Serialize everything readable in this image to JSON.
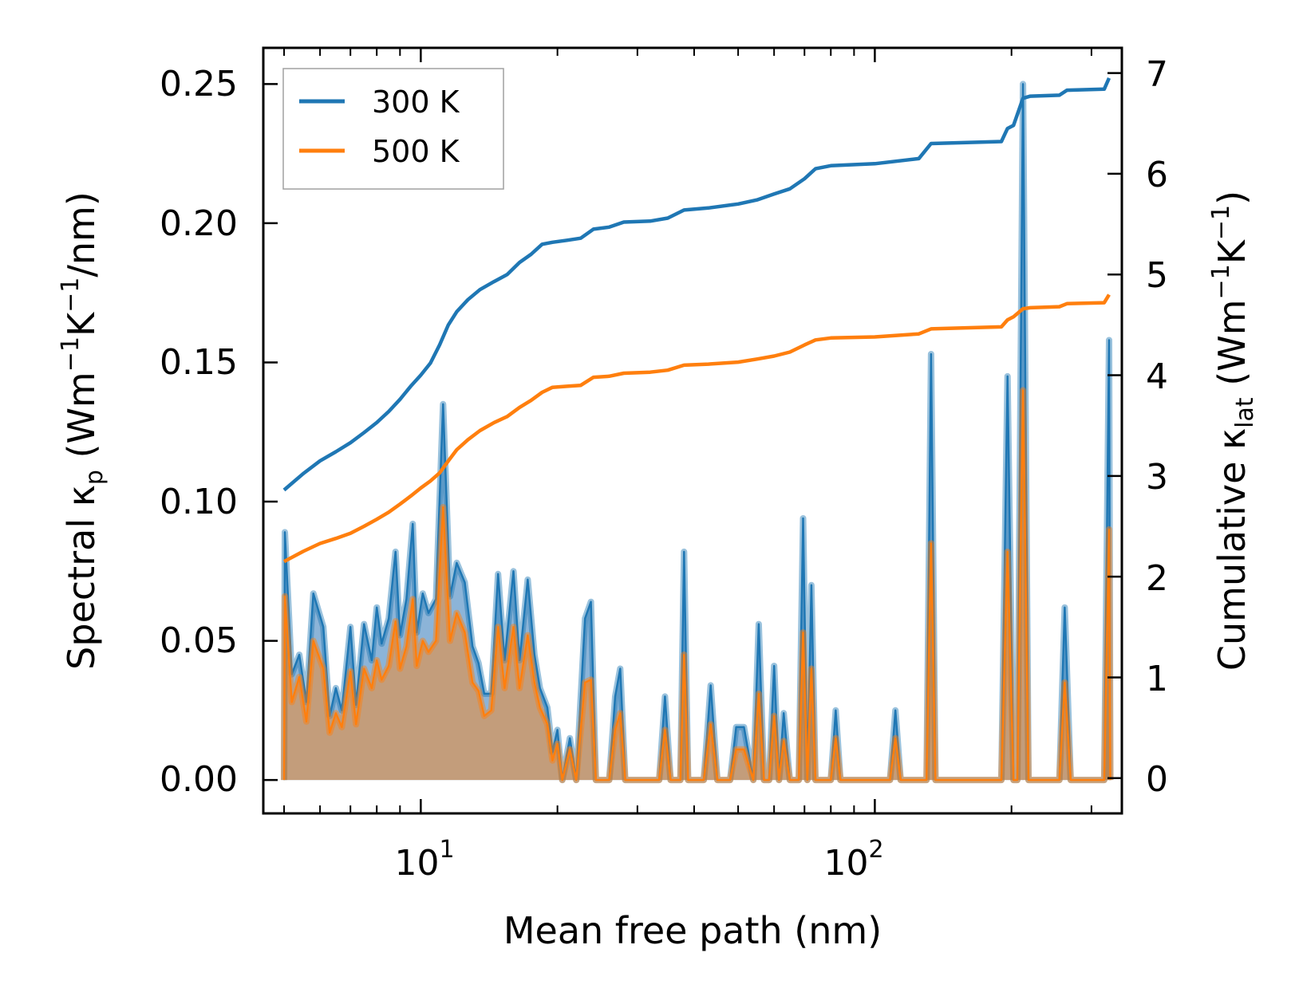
{
  "chart_data": {
    "type": "line",
    "xlabel": "Mean free path (nm)",
    "ylabel": {
      "prefix": "Spectral κ",
      "sub": "p",
      "open": " (Wm",
      "sup1": "−1",
      "mid": "K",
      "sup2": "−1",
      "close": "/nm)"
    },
    "y2label": {
      "prefix": "Cumulative κ",
      "sub": "lat",
      "open": " (Wm",
      "sup1": "−1",
      "mid": "K",
      "sup2": "−1",
      "close": ")"
    },
    "xscale": "log",
    "xlim": [
      4.5,
      350
    ],
    "ylim": [
      -0.012,
      0.263
    ],
    "y2lim": [
      -0.35,
      7.25
    ],
    "x_tick_labels": [
      {
        "value": 10,
        "base": "10",
        "exp": "1"
      },
      {
        "value": 100,
        "base": "10",
        "exp": "2"
      }
    ],
    "y_ticks": [
      0.0,
      0.05,
      0.1,
      0.15,
      0.2,
      0.25
    ],
    "y_tick_labels": [
      "0.00",
      "0.05",
      "0.10",
      "0.15",
      "0.20",
      "0.25"
    ],
    "y2_ticks": [
      0,
      1,
      2,
      3,
      4,
      5,
      6,
      7
    ],
    "y2_tick_labels": [
      "0",
      "1",
      "2",
      "3",
      "4",
      "5",
      "6",
      "7"
    ],
    "legend": {
      "position": "upper-left",
      "entries": [
        "300 K",
        "500 K"
      ]
    },
    "colors": {
      "300 K": "#1f77b4",
      "500 K": "#ff7f0e",
      "fill_300": "#8cb4d8",
      "fill_500": "#c89b73"
    },
    "spectral_series": [
      {
        "name": "300 K",
        "points": [
          [
            5.0,
            0.0
          ],
          [
            5.02,
            0.089
          ],
          [
            5.2,
            0.038
          ],
          [
            5.4,
            0.045
          ],
          [
            5.6,
            0.028
          ],
          [
            5.8,
            0.067
          ],
          [
            6.1,
            0.055
          ],
          [
            6.3,
            0.023
          ],
          [
            6.5,
            0.033
          ],
          [
            6.7,
            0.025
          ],
          [
            7.0,
            0.055
          ],
          [
            7.2,
            0.027
          ],
          [
            7.5,
            0.056
          ],
          [
            7.8,
            0.043
          ],
          [
            8.0,
            0.062
          ],
          [
            8.2,
            0.049
          ],
          [
            8.5,
            0.058
          ],
          [
            8.8,
            0.082
          ],
          [
            9.0,
            0.052
          ],
          [
            9.3,
            0.065
          ],
          [
            9.6,
            0.092
          ],
          [
            9.8,
            0.053
          ],
          [
            10.1,
            0.067
          ],
          [
            10.4,
            0.06
          ],
          [
            10.8,
            0.065
          ],
          [
            11.2,
            0.135
          ],
          [
            11.6,
            0.066
          ],
          [
            12.0,
            0.078
          ],
          [
            12.5,
            0.071
          ],
          [
            13.0,
            0.048
          ],
          [
            13.4,
            0.042
          ],
          [
            13.8,
            0.031
          ],
          [
            14.3,
            0.031
          ],
          [
            14.8,
            0.074
          ],
          [
            15.3,
            0.043
          ],
          [
            16.0,
            0.075
          ],
          [
            16.5,
            0.043
          ],
          [
            17.2,
            0.072
          ],
          [
            17.8,
            0.045
          ],
          [
            18.3,
            0.033
          ],
          [
            19.0,
            0.026
          ],
          [
            19.5,
            0.01
          ],
          [
            20.0,
            0.018
          ],
          [
            20.5,
            0.0
          ],
          [
            21.3,
            0.015
          ],
          [
            22.0,
            0.0
          ],
          [
            23.0,
            0.058
          ],
          [
            23.7,
            0.064
          ],
          [
            24.3,
            0.0
          ],
          [
            26.0,
            0.0
          ],
          [
            26.8,
            0.03
          ],
          [
            27.5,
            0.04
          ],
          [
            28.2,
            0.0
          ],
          [
            33.5,
            0.0
          ],
          [
            34.5,
            0.03
          ],
          [
            35.5,
            0.0
          ],
          [
            37.3,
            0.0
          ],
          [
            38.0,
            0.082
          ],
          [
            38.8,
            0.0
          ],
          [
            42.0,
            0.0
          ],
          [
            43.5,
            0.034
          ],
          [
            45.0,
            0.0
          ],
          [
            48.0,
            0.0
          ],
          [
            49.5,
            0.019
          ],
          [
            51.5,
            0.019
          ],
          [
            54.0,
            0.0
          ],
          [
            55.5,
            0.056
          ],
          [
            57.0,
            0.0
          ],
          [
            58.5,
            0.0
          ],
          [
            60.0,
            0.041
          ],
          [
            61.5,
            0.0
          ],
          [
            63.0,
            0.024
          ],
          [
            65.0,
            0.0
          ],
          [
            68.0,
            0.0
          ],
          [
            69.5,
            0.094
          ],
          [
            71.0,
            0.0
          ],
          [
            72.5,
            0.07
          ],
          [
            74.0,
            0.0
          ],
          [
            80.0,
            0.0
          ],
          [
            82.0,
            0.025
          ],
          [
            84.0,
            0.0
          ],
          [
            108.0,
            0.0
          ],
          [
            111.0,
            0.025
          ],
          [
            114.0,
            0.0
          ],
          [
            130.0,
            0.0
          ],
          [
            133.0,
            0.153
          ],
          [
            136.0,
            0.0
          ],
          [
            190.0,
            0.0
          ],
          [
            196.0,
            0.145
          ],
          [
            202.0,
            0.0
          ],
          [
            206.0,
            0.0
          ],
          [
            212.0,
            0.25
          ],
          [
            218.0,
            0.0
          ],
          [
            255.0,
            0.0
          ],
          [
            262.0,
            0.062
          ],
          [
            270.0,
            0.0
          ],
          [
            320.0,
            0.0
          ],
          [
            328.0,
            0.158
          ],
          [
            330.0,
            0.0
          ]
        ]
      },
      {
        "name": "500 K",
        "points": [
          [
            5.0,
            0.0
          ],
          [
            5.02,
            0.066
          ],
          [
            5.2,
            0.028
          ],
          [
            5.4,
            0.037
          ],
          [
            5.6,
            0.021
          ],
          [
            5.8,
            0.05
          ],
          [
            6.1,
            0.04
          ],
          [
            6.3,
            0.017
          ],
          [
            6.5,
            0.024
          ],
          [
            6.7,
            0.019
          ],
          [
            7.0,
            0.039
          ],
          [
            7.2,
            0.02
          ],
          [
            7.5,
            0.04
          ],
          [
            7.8,
            0.033
          ],
          [
            8.0,
            0.043
          ],
          [
            8.2,
            0.036
          ],
          [
            8.5,
            0.041
          ],
          [
            8.8,
            0.057
          ],
          [
            9.0,
            0.04
          ],
          [
            9.3,
            0.048
          ],
          [
            9.6,
            0.065
          ],
          [
            9.8,
            0.041
          ],
          [
            10.1,
            0.05
          ],
          [
            10.4,
            0.046
          ],
          [
            10.8,
            0.05
          ],
          [
            11.2,
            0.098
          ],
          [
            11.6,
            0.05
          ],
          [
            12.0,
            0.06
          ],
          [
            12.5,
            0.053
          ],
          [
            13.0,
            0.035
          ],
          [
            13.4,
            0.032
          ],
          [
            13.8,
            0.023
          ],
          [
            14.3,
            0.025
          ],
          [
            14.8,
            0.055
          ],
          [
            15.3,
            0.033
          ],
          [
            16.0,
            0.055
          ],
          [
            16.5,
            0.033
          ],
          [
            17.2,
            0.052
          ],
          [
            17.8,
            0.035
          ],
          [
            18.3,
            0.026
          ],
          [
            19.0,
            0.02
          ],
          [
            19.5,
            0.007
          ],
          [
            20.0,
            0.013
          ],
          [
            20.5,
            0.0
          ],
          [
            21.3,
            0.011
          ],
          [
            22.0,
            0.0
          ],
          [
            23.0,
            0.035
          ],
          [
            23.7,
            0.036
          ],
          [
            24.3,
            0.0
          ],
          [
            26.0,
            0.0
          ],
          [
            26.8,
            0.018
          ],
          [
            27.5,
            0.024
          ],
          [
            28.2,
            0.0
          ],
          [
            33.5,
            0.0
          ],
          [
            34.5,
            0.018
          ],
          [
            35.5,
            0.0
          ],
          [
            37.3,
            0.0
          ],
          [
            38.0,
            0.045
          ],
          [
            38.8,
            0.0
          ],
          [
            42.0,
            0.0
          ],
          [
            43.5,
            0.02
          ],
          [
            45.0,
            0.0
          ],
          [
            48.0,
            0.0
          ],
          [
            49.5,
            0.011
          ],
          [
            51.5,
            0.011
          ],
          [
            54.0,
            0.0
          ],
          [
            55.5,
            0.031
          ],
          [
            57.0,
            0.0
          ],
          [
            58.5,
            0.0
          ],
          [
            60.0,
            0.023
          ],
          [
            61.5,
            0.0
          ],
          [
            63.0,
            0.014
          ],
          [
            65.0,
            0.0
          ],
          [
            68.0,
            0.0
          ],
          [
            69.5,
            0.053
          ],
          [
            71.0,
            0.0
          ],
          [
            72.5,
            0.04
          ],
          [
            74.0,
            0.0
          ],
          [
            80.0,
            0.0
          ],
          [
            82.0,
            0.015
          ],
          [
            84.0,
            0.0
          ],
          [
            108.0,
            0.0
          ],
          [
            111.0,
            0.015
          ],
          [
            114.0,
            0.0
          ],
          [
            130.0,
            0.0
          ],
          [
            133.0,
            0.085
          ],
          [
            136.0,
            0.0
          ],
          [
            190.0,
            0.0
          ],
          [
            196.0,
            0.082
          ],
          [
            202.0,
            0.0
          ],
          [
            206.0,
            0.0
          ],
          [
            212.0,
            0.14
          ],
          [
            218.0,
            0.0
          ],
          [
            255.0,
            0.0
          ],
          [
            262.0,
            0.035
          ],
          [
            270.0,
            0.0
          ],
          [
            320.0,
            0.0
          ],
          [
            328.0,
            0.09
          ],
          [
            330.0,
            0.0
          ]
        ]
      }
    ],
    "cumulative_series": [
      {
        "name": "300 K",
        "points": [
          [
            5.0,
            2.86
          ],
          [
            5.5,
            3.02
          ],
          [
            6.0,
            3.15
          ],
          [
            6.5,
            3.24
          ],
          [
            7.0,
            3.33
          ],
          [
            7.5,
            3.43
          ],
          [
            8.0,
            3.53
          ],
          [
            8.5,
            3.64
          ],
          [
            9.0,
            3.76
          ],
          [
            9.5,
            3.89
          ],
          [
            10.0,
            4.0
          ],
          [
            10.5,
            4.12
          ],
          [
            11.0,
            4.3
          ],
          [
            11.5,
            4.5
          ],
          [
            12.0,
            4.63
          ],
          [
            12.7,
            4.75
          ],
          [
            13.5,
            4.85
          ],
          [
            14.5,
            4.93
          ],
          [
            15.5,
            5.0
          ],
          [
            16.5,
            5.12
          ],
          [
            17.5,
            5.2
          ],
          [
            18.5,
            5.3
          ],
          [
            19.5,
            5.32
          ],
          [
            21.0,
            5.34
          ],
          [
            22.5,
            5.36
          ],
          [
            24.0,
            5.45
          ],
          [
            26.0,
            5.47
          ],
          [
            28.0,
            5.52
          ],
          [
            32.0,
            5.53
          ],
          [
            35.0,
            5.56
          ],
          [
            38.0,
            5.64
          ],
          [
            43.0,
            5.66
          ],
          [
            50.0,
            5.7
          ],
          [
            55.0,
            5.74
          ],
          [
            60.0,
            5.8
          ],
          [
            65.0,
            5.85
          ],
          [
            70.0,
            5.95
          ],
          [
            74.0,
            6.05
          ],
          [
            80.0,
            6.08
          ],
          [
            100.0,
            6.1
          ],
          [
            125.0,
            6.15
          ],
          [
            133.0,
            6.3
          ],
          [
            190.0,
            6.32
          ],
          [
            196.0,
            6.45
          ],
          [
            202.0,
            6.48
          ],
          [
            212.0,
            6.75
          ],
          [
            220.0,
            6.77
          ],
          [
            255.0,
            6.78
          ],
          [
            265.0,
            6.83
          ],
          [
            320.0,
            6.84
          ],
          [
            328.0,
            6.95
          ]
        ]
      },
      {
        "name": "500 K",
        "points": [
          [
            5.0,
            2.15
          ],
          [
            5.5,
            2.25
          ],
          [
            6.0,
            2.33
          ],
          [
            6.5,
            2.38
          ],
          [
            7.0,
            2.43
          ],
          [
            7.5,
            2.5
          ],
          [
            8.0,
            2.57
          ],
          [
            8.5,
            2.64
          ],
          [
            9.0,
            2.72
          ],
          [
            9.5,
            2.8
          ],
          [
            10.0,
            2.88
          ],
          [
            10.5,
            2.95
          ],
          [
            11.0,
            3.03
          ],
          [
            11.5,
            3.15
          ],
          [
            12.0,
            3.26
          ],
          [
            12.7,
            3.36
          ],
          [
            13.5,
            3.45
          ],
          [
            14.5,
            3.53
          ],
          [
            15.5,
            3.59
          ],
          [
            16.5,
            3.68
          ],
          [
            17.5,
            3.75
          ],
          [
            18.5,
            3.83
          ],
          [
            19.5,
            3.88
          ],
          [
            21.0,
            3.89
          ],
          [
            22.5,
            3.9
          ],
          [
            24.0,
            3.98
          ],
          [
            26.0,
            3.99
          ],
          [
            28.0,
            4.02
          ],
          [
            32.0,
            4.03
          ],
          [
            35.0,
            4.05
          ],
          [
            38.0,
            4.1
          ],
          [
            43.0,
            4.11
          ],
          [
            50.0,
            4.13
          ],
          [
            55.0,
            4.16
          ],
          [
            60.0,
            4.19
          ],
          [
            65.0,
            4.23
          ],
          [
            70.0,
            4.3
          ],
          [
            74.0,
            4.35
          ],
          [
            80.0,
            4.37
          ],
          [
            100.0,
            4.38
          ],
          [
            125.0,
            4.41
          ],
          [
            133.0,
            4.46
          ],
          [
            190.0,
            4.48
          ],
          [
            196.0,
            4.55
          ],
          [
            202.0,
            4.58
          ],
          [
            212.0,
            4.66
          ],
          [
            220.0,
            4.67
          ],
          [
            255.0,
            4.68
          ],
          [
            265.0,
            4.71
          ],
          [
            320.0,
            4.72
          ],
          [
            328.0,
            4.8
          ]
        ]
      }
    ]
  }
}
